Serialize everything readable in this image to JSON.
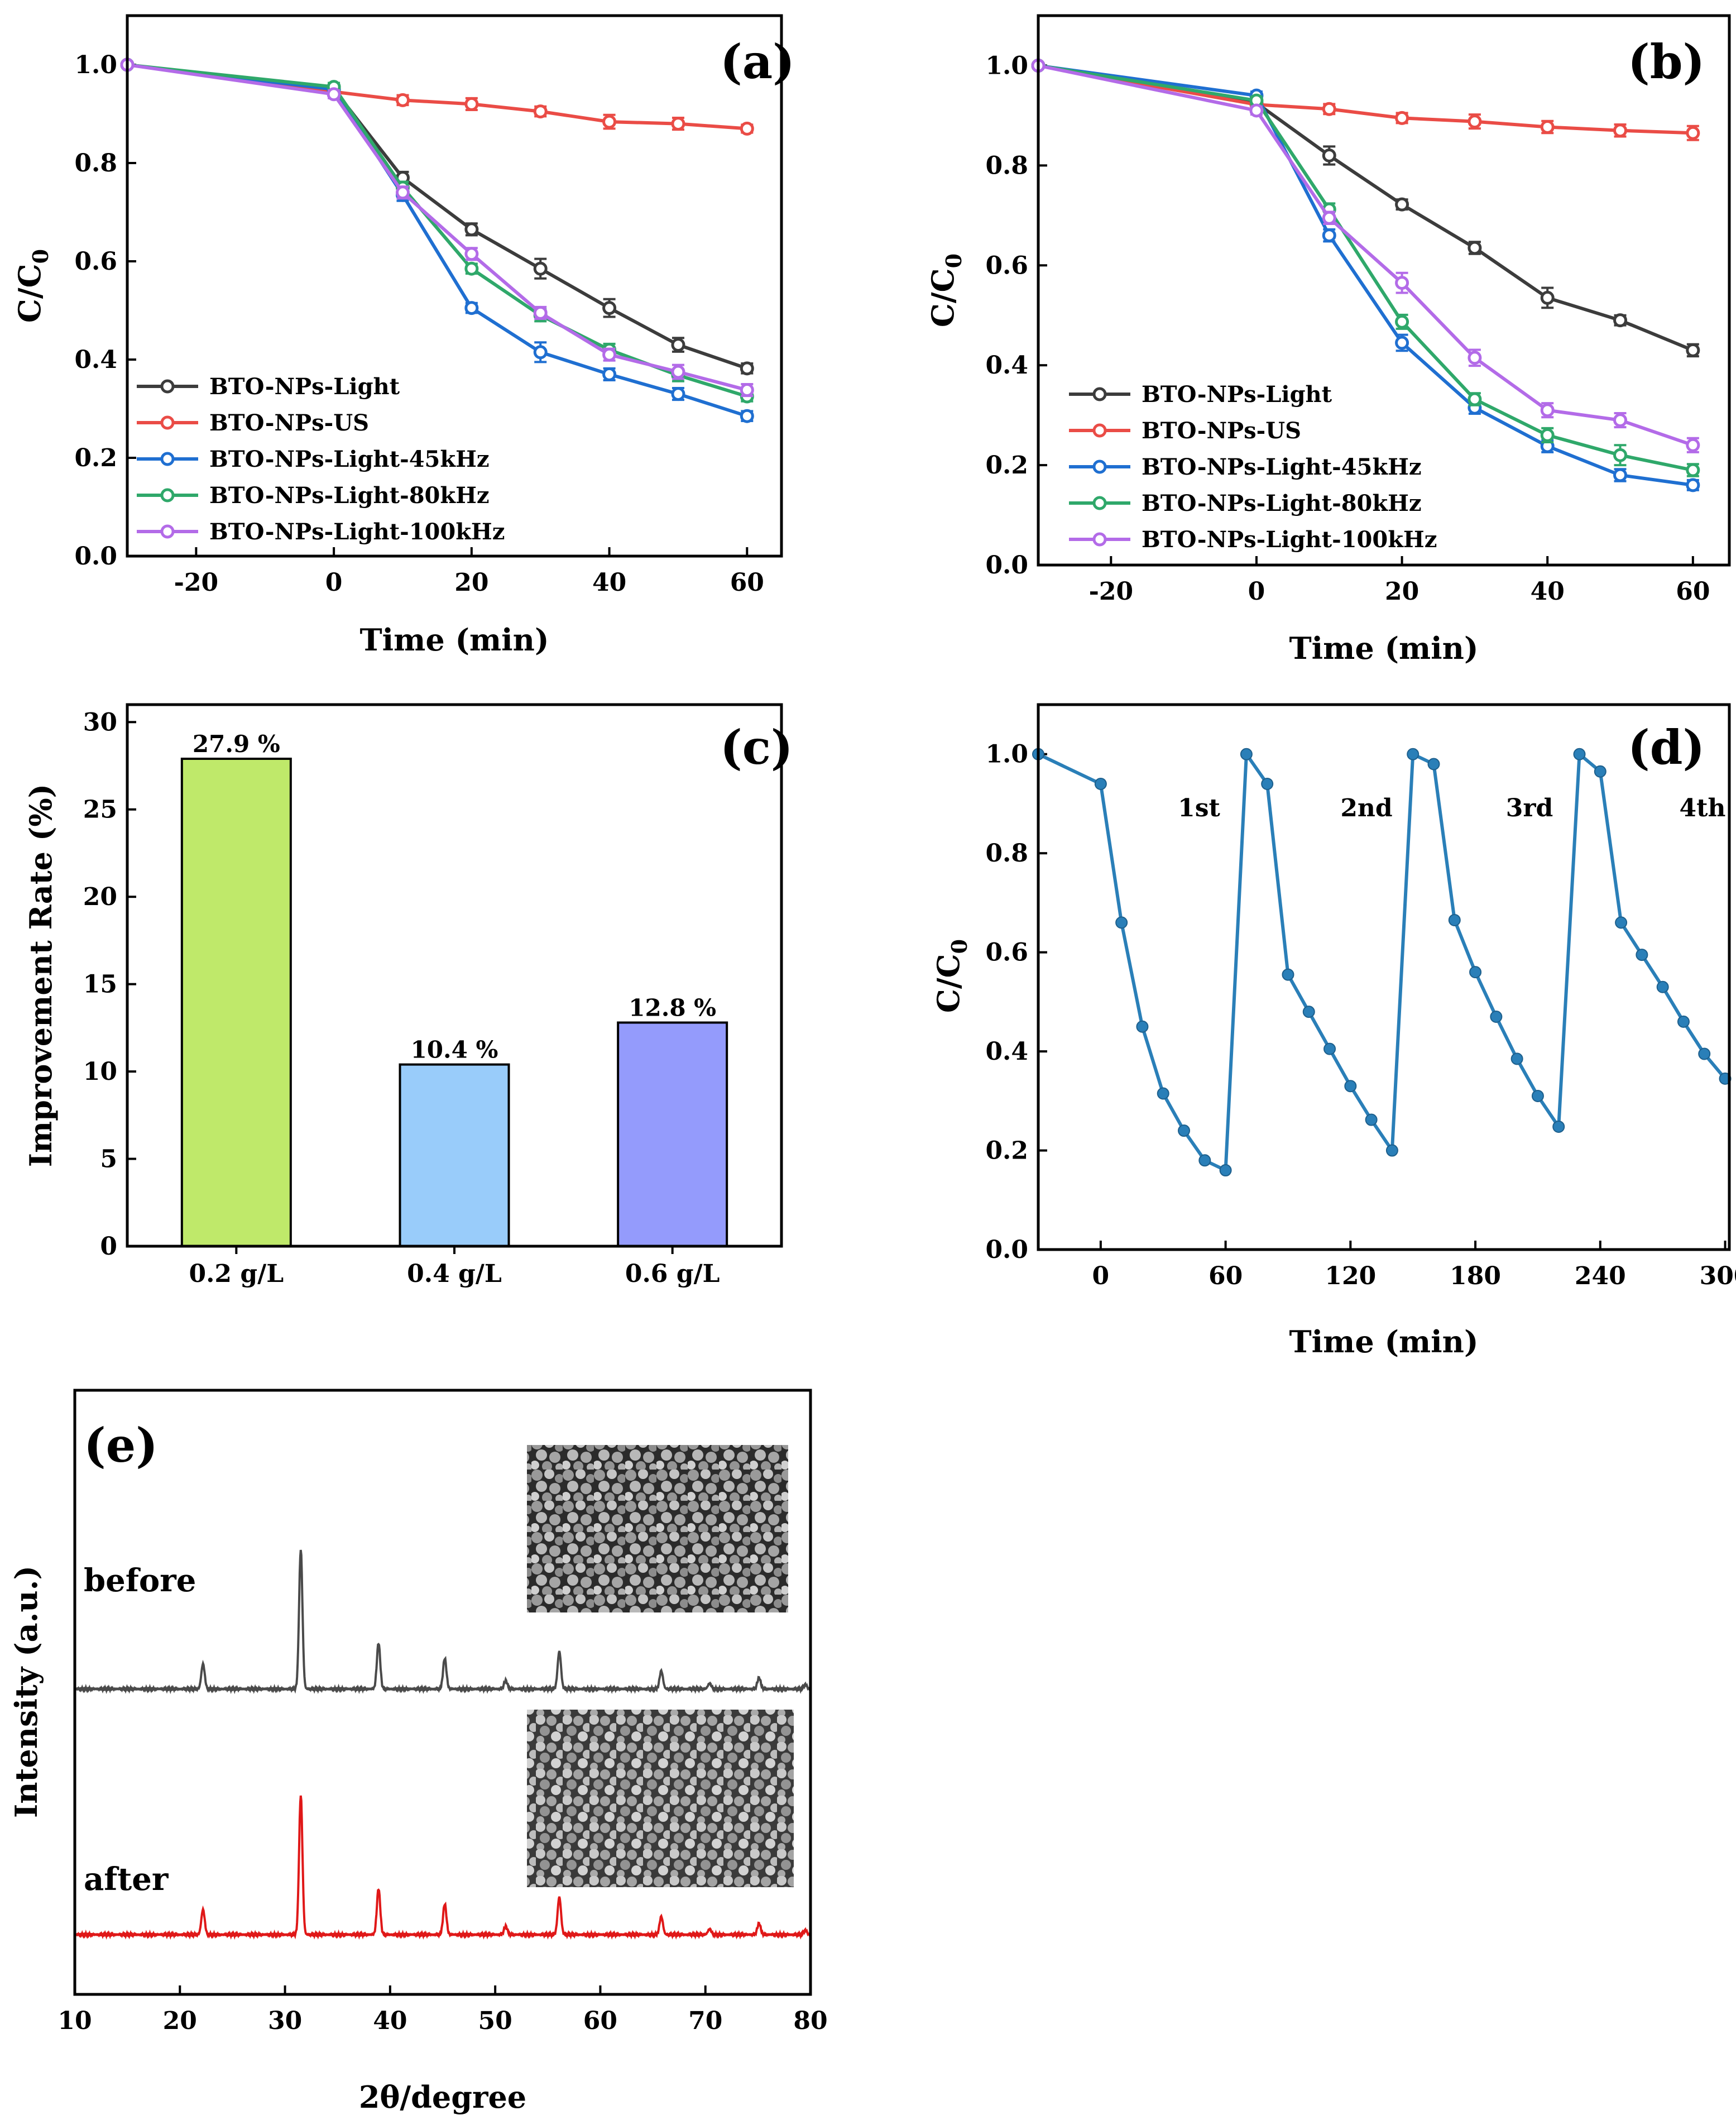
{
  "chart_data": [
    {
      "id": "a",
      "type": "line",
      "panel_label": "(a)",
      "xlabel": "Time (min)",
      "ylabel": "C/C",
      "ylabel_sub": "0",
      "xlim": [
        -30,
        65
      ],
      "ylim": [
        0,
        1.1
      ],
      "xticks": [
        -20,
        0,
        20,
        40,
        60
      ],
      "yticks": [
        0.0,
        0.2,
        0.4,
        0.6,
        0.8,
        1.0
      ],
      "xtick_labels": [
        "-20",
        "0",
        "20",
        "40",
        "60"
      ],
      "ytick_labels": [
        "0.0",
        "0.2",
        "0.4",
        "0.6",
        "0.8",
        "1.0"
      ],
      "x": [
        -30,
        0,
        10,
        20,
        30,
        40,
        50,
        60
      ],
      "legend_position": "lower-left",
      "series": [
        {
          "name": "BTO-NPs-Light",
          "color": "#3c3c3c",
          "values": [
            1.0,
            0.95,
            0.77,
            0.665,
            0.585,
            0.505,
            0.43,
            0.382
          ],
          "errors": [
            0,
            0.008,
            0.012,
            0.012,
            0.02,
            0.018,
            0.014,
            0.01
          ]
        },
        {
          "name": "BTO-NPs-US",
          "color": "#ea4c46",
          "values": [
            1.0,
            0.945,
            0.928,
            0.92,
            0.905,
            0.884,
            0.88,
            0.87
          ],
          "errors": [
            0,
            0.006,
            0.01,
            0.012,
            0.01,
            0.014,
            0.012,
            0.008
          ]
        },
        {
          "name": "BTO-NPs-Light-45kHz",
          "color": "#1f6fd1",
          "values": [
            1.0,
            0.95,
            0.735,
            0.505,
            0.415,
            0.37,
            0.33,
            0.285
          ],
          "errors": [
            0,
            0.008,
            0.012,
            0.01,
            0.02,
            0.012,
            0.012,
            0.01
          ]
        },
        {
          "name": "BTO-NPs-Light-80kHz",
          "color": "#2fa86a",
          "values": [
            1.0,
            0.955,
            0.75,
            0.585,
            0.49,
            0.42,
            0.368,
            0.325
          ],
          "errors": [
            0,
            0.008,
            0.012,
            0.01,
            0.012,
            0.012,
            0.012,
            0.01
          ]
        },
        {
          "name": "BTO-NPs-Light-100kHz",
          "color": "#b36be8",
          "values": [
            1.0,
            0.94,
            0.74,
            0.615,
            0.495,
            0.41,
            0.375,
            0.338
          ],
          "errors": [
            0,
            0.008,
            0.012,
            0.012,
            0.012,
            0.012,
            0.014,
            0.012
          ]
        }
      ]
    },
    {
      "id": "b",
      "type": "line",
      "panel_label": "(b)",
      "xlabel": "Time (min)",
      "ylabel": "C/C",
      "ylabel_sub": "0",
      "xlim": [
        -30,
        65
      ],
      "ylim": [
        0,
        1.1
      ],
      "xticks": [
        -20,
        0,
        20,
        40,
        60
      ],
      "yticks": [
        0.0,
        0.2,
        0.4,
        0.6,
        0.8,
        1.0
      ],
      "xtick_labels": [
        "-20",
        "0",
        "20",
        "40",
        "60"
      ],
      "ytick_labels": [
        "0.0",
        "0.2",
        "0.4",
        "0.6",
        "0.8",
        "1.0"
      ],
      "x": [
        -30,
        0,
        10,
        20,
        30,
        40,
        50,
        60
      ],
      "legend_position": "lower-left",
      "series": [
        {
          "name": "BTO-NPs-Light",
          "color": "#3c3c3c",
          "values": [
            1.0,
            0.925,
            0.82,
            0.722,
            0.635,
            0.535,
            0.49,
            0.43
          ],
          "errors": [
            0,
            0.01,
            0.018,
            0.01,
            0.012,
            0.02,
            0.01,
            0.012
          ]
        },
        {
          "name": "BTO-NPs-US",
          "color": "#ea4c46",
          "values": [
            1.0,
            0.922,
            0.913,
            0.895,
            0.888,
            0.877,
            0.87,
            0.865
          ],
          "errors": [
            0,
            0.008,
            0.01,
            0.01,
            0.014,
            0.012,
            0.012,
            0.014
          ]
        },
        {
          "name": "BTO-NPs-Light-45kHz",
          "color": "#1f6fd1",
          "values": [
            1.0,
            0.94,
            0.66,
            0.445,
            0.315,
            0.238,
            0.18,
            0.16
          ],
          "errors": [
            0,
            0.008,
            0.012,
            0.016,
            0.012,
            0.012,
            0.012,
            0.01
          ]
        },
        {
          "name": "BTO-NPs-Light-80kHz",
          "color": "#2fa86a",
          "values": [
            1.0,
            0.93,
            0.712,
            0.487,
            0.332,
            0.26,
            0.22,
            0.19
          ],
          "errors": [
            0,
            0.008,
            0.012,
            0.014,
            0.012,
            0.014,
            0.02,
            0.012
          ]
        },
        {
          "name": "BTO-NPs-Light-100kHz",
          "color": "#b36be8",
          "values": [
            1.0,
            0.91,
            0.695,
            0.565,
            0.415,
            0.31,
            0.29,
            0.24
          ],
          "errors": [
            0,
            0.008,
            0.012,
            0.02,
            0.016,
            0.014,
            0.014,
            0.014
          ]
        }
      ]
    },
    {
      "id": "c",
      "type": "bar",
      "panel_label": "(c)",
      "xlabel": "",
      "ylabel": "Improvement Rate (%)",
      "ylim": [
        0,
        31
      ],
      "yticks": [
        0,
        5,
        10,
        15,
        20,
        25,
        30
      ],
      "ytick_labels": [
        "0",
        "5",
        "10",
        "15",
        "20",
        "25",
        "30"
      ],
      "categories": [
        "0.2 g/L",
        "0.4 g/L",
        "0.6 g/L"
      ],
      "values": [
        27.9,
        10.4,
        12.8
      ],
      "value_labels": [
        "27.9 %",
        "10.4 %",
        "12.8 %"
      ],
      "colors": [
        "#bfe96a",
        "#99ccfa",
        "#949bfc"
      ]
    },
    {
      "id": "d",
      "type": "line",
      "panel_label": "(d)",
      "xlabel": "Time (min)",
      "ylabel": "C/C",
      "ylabel_sub": "0",
      "xlim": [
        -30,
        302
      ],
      "ylim": [
        0,
        1.1
      ],
      "xticks": [
        0,
        60,
        120,
        180,
        240,
        300
      ],
      "yticks": [
        0.0,
        0.2,
        0.4,
        0.6,
        0.8,
        1.0
      ],
      "xtick_labels": [
        "0",
        "60",
        "120",
        "180",
        "240",
        "300"
      ],
      "ytick_labels": [
        "0.0",
        "0.2",
        "0.4",
        "0.6",
        "0.8",
        "1.0"
      ],
      "color": "#2a7fb8",
      "x": [
        -30,
        0,
        10,
        20,
        30,
        40,
        50,
        60,
        70,
        80,
        90,
        100,
        110,
        120,
        130,
        140,
        150,
        160,
        170,
        180,
        190,
        200,
        210,
        220,
        230,
        240,
        250,
        260,
        270,
        280,
        290,
        300
      ],
      "values": [
        1.0,
        0.94,
        0.66,
        0.45,
        0.315,
        0.24,
        0.18,
        0.16,
        1.0,
        0.94,
        0.555,
        0.48,
        0.405,
        0.33,
        0.262,
        0.2,
        1.0,
        0.98,
        0.665,
        0.56,
        0.47,
        0.385,
        0.31,
        0.248,
        1.0,
        0.965,
        0.66,
        0.595,
        0.53,
        0.46,
        0.395,
        0.345
      ],
      "cycle_labels": [
        "1st",
        "2nd",
        "3rd",
        "4th"
      ]
    },
    {
      "id": "e",
      "type": "line",
      "panel_label": "(e)",
      "xlabel": "2θ/degree",
      "ylabel": "Intensity (a.u.)",
      "xlim": [
        10,
        80
      ],
      "xticks": [
        10,
        20,
        30,
        40,
        50,
        60,
        70,
        80
      ],
      "xtick_labels": [
        "10",
        "20",
        "30",
        "40",
        "50",
        "60",
        "70",
        "80"
      ],
      "peaks": [
        {
          "pos": 22.2,
          "height": 0.18
        },
        {
          "pos": 31.5,
          "height": 1.0
        },
        {
          "pos": 38.9,
          "height": 0.33
        },
        {
          "pos": 45.2,
          "height": 0.22
        },
        {
          "pos": 51.0,
          "height": 0.06
        },
        {
          "pos": 56.1,
          "height": 0.27
        },
        {
          "pos": 65.8,
          "height": 0.13
        },
        {
          "pos": 70.4,
          "height": 0.04
        },
        {
          "pos": 75.1,
          "height": 0.08
        },
        {
          "pos": 79.5,
          "height": 0.03
        }
      ],
      "series": [
        {
          "name": "before",
          "color": "#4a4a4a"
        },
        {
          "name": "after",
          "color": "#e01818"
        }
      ]
    }
  ]
}
